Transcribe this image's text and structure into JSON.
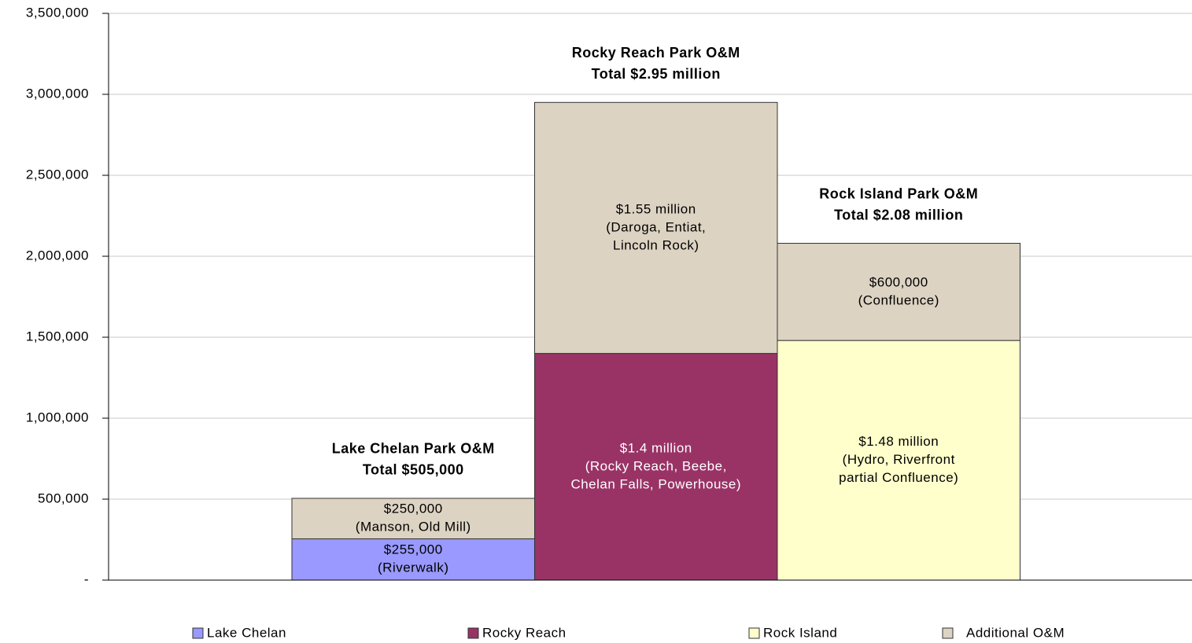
{
  "chart_data": {
    "type": "stacked_bar",
    "categories": [
      null,
      null,
      null
    ],
    "series": [
      {
        "name": "Lake Chelan",
        "color": "#9999ff",
        "values": [
          255000,
          null,
          null
        ],
        "value_labels": [
          [
            "$255,000",
            "(Riverwalk)"
          ],
          null,
          null
        ],
        "label_color": "#000000"
      },
      {
        "name": "Rocky Reach",
        "color": "#993366",
        "values": [
          null,
          1400000,
          null
        ],
        "value_labels": [
          null,
          [
            "$1.4 million",
            "(Rocky Reach, Beebe,",
            "Chelan Falls, Powerhouse)"
          ],
          null
        ],
        "label_color": "#ffffff"
      },
      {
        "name": "Rock Island",
        "color": "#ffffcc",
        "values": [
          null,
          null,
          1480000
        ],
        "value_labels": [
          null,
          null,
          [
            "$1.48 million",
            "(Hydro, Riverfront",
            "partial Confluence)"
          ]
        ],
        "label_color": "#000000"
      },
      {
        "name": "Additional O&M",
        "color": "#ddd3c3",
        "values": [
          250000,
          1550000,
          600000
        ],
        "value_labels": [
          [
            "$250,000",
            "(Manson, Old Mill)"
          ],
          [
            "$1.55 million",
            "(Daroga, Entiat,",
            "Lincoln Rock)"
          ],
          [
            "$600,000",
            "(Confluence)"
          ]
        ],
        "label_color": "#000000"
      }
    ],
    "annotations": [
      [
        "Lake Chelan Park O&M",
        "Total $505,000"
      ],
      [
        "Rocky Reach Park O&M",
        "Total $2.95 million"
      ],
      [
        "Rock Island Park O&M",
        "Total $2.08 million"
      ]
    ],
    "ylim": [
      0,
      3500000
    ],
    "yticks": [
      {
        "value": 0,
        "label": "-"
      },
      {
        "value": 500000,
        "label": "500,000"
      },
      {
        "value": 1000000,
        "label": "1,000,000"
      },
      {
        "value": 1500000,
        "label": "1,500,000"
      },
      {
        "value": 2000000,
        "label": "2,000,000"
      },
      {
        "value": 2500000,
        "label": "2,500,000"
      },
      {
        "value": 3000000,
        "label": "3,000,000"
      },
      {
        "value": 3500000,
        "label": "3,500,000"
      }
    ],
    "grid": true,
    "legend": "bottom"
  }
}
